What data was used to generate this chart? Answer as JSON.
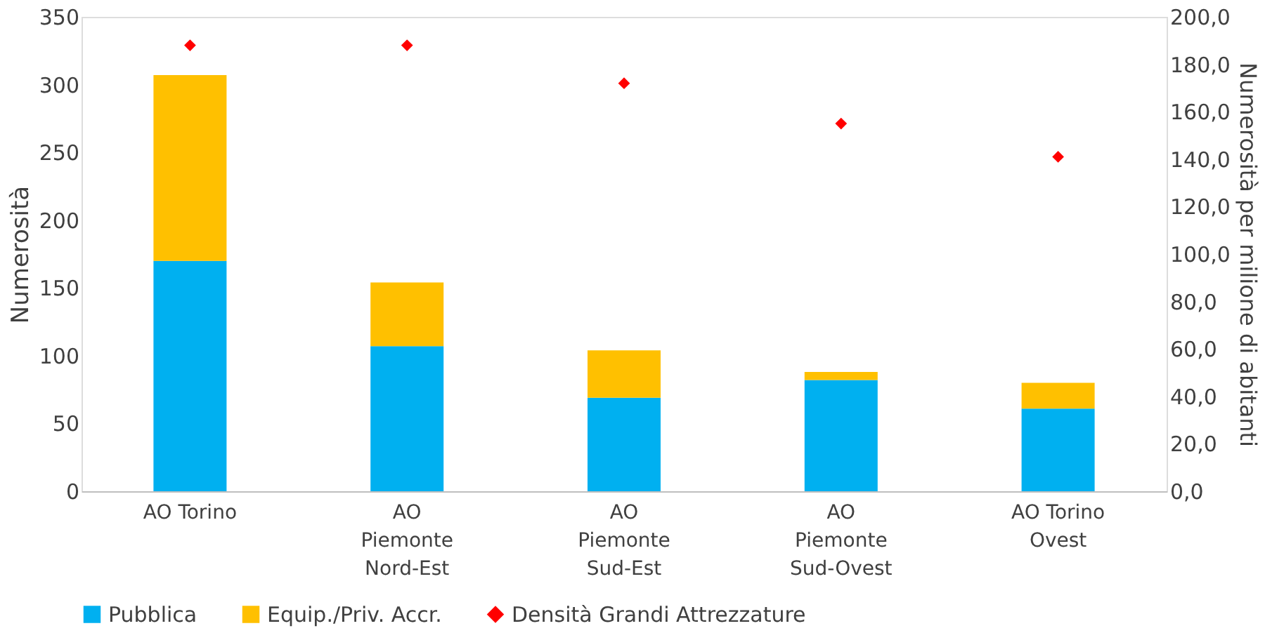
{
  "chart_data": {
    "type": "bar",
    "stacked": true,
    "categories": [
      "AO Torino",
      "AO\nPiemonte\nNord-Est",
      "AO\nPiemonte\nSud-Est",
      "AO\nPiemonte\nSud-Ovest",
      "AO Torino\nOvest"
    ],
    "ylabel": "Numerosità",
    "y2label": "Numerosità per milione di abitanti",
    "ylim": [
      0,
      350
    ],
    "yticks": [
      0,
      50,
      100,
      150,
      200,
      250,
      300,
      350
    ],
    "y2lim": [
      0,
      200
    ],
    "y2ticks": [
      {
        "value": 0,
        "label": "0,0"
      },
      {
        "value": 20,
        "label": "20,0"
      },
      {
        "value": 40,
        "label": "40,0"
      },
      {
        "value": 60,
        "label": "60,0"
      },
      {
        "value": 80,
        "label": "80,0"
      },
      {
        "value": 100,
        "label": "100,0"
      },
      {
        "value": 120,
        "label": "120,0"
      },
      {
        "value": 140,
        "label": "140,0"
      },
      {
        "value": 160,
        "label": "160,0"
      },
      {
        "value": 180,
        "label": "180,0"
      },
      {
        "value": 200,
        "label": "200,0"
      }
    ],
    "series": [
      {
        "name": "Pubblica",
        "color": "#00b0f0",
        "values": [
          170,
          107,
          69,
          82,
          61
        ]
      },
      {
        "name": "Equip./Priv. Accr.",
        "color": "#ffc000",
        "values": [
          137,
          47,
          35,
          6,
          19
        ]
      },
      {
        "name": "Densità Grandi Attrezzature",
        "color": "#ff0000",
        "type": "scatter",
        "axis": "y2",
        "marker": "diamond",
        "values": [
          188,
          188,
          172,
          155,
          141
        ]
      }
    ],
    "grid": false,
    "legend": "bottom"
  }
}
